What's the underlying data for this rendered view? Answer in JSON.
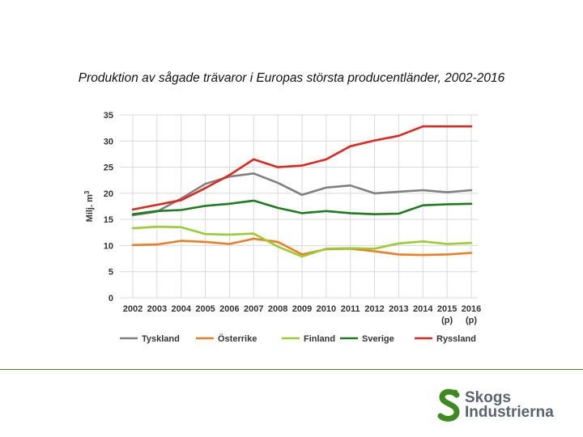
{
  "slide": {
    "title": "Produktion av sågade trävaror i Europas största producentländer, 2002-2016"
  },
  "logo": {
    "line1": "Skogs",
    "line2": "Industrierna",
    "color": "#3d8b1f"
  },
  "chart_data": {
    "type": "line",
    "title": "Produktion av sågade trävaror i Europas största producentländer, 2002-2016",
    "ylabel": "Milj. m",
    "ylabel_sup": "3",
    "xlabel": "",
    "ylim": [
      0,
      35
    ],
    "yticks": [
      0,
      5,
      10,
      15,
      20,
      25,
      30,
      35
    ],
    "grid": true,
    "legend": "bottom",
    "categories": [
      "2002",
      "2003",
      "2004",
      "2005",
      "2006",
      "2007",
      "2008",
      "2009",
      "2010",
      "2011",
      "2012",
      "2013",
      "2014",
      "2015",
      "2016"
    ],
    "category_notes": {
      "2015": "(p)",
      "2016": "(p)"
    },
    "series": [
      {
        "name": "Tyskland",
        "color": "#808080",
        "values": [
          15.8,
          16.5,
          19.0,
          21.8,
          23.2,
          23.8,
          22.0,
          19.7,
          21.1,
          21.5,
          20.0,
          20.3,
          20.6,
          20.2,
          20.6
        ]
      },
      {
        "name": "Österrike",
        "color": "#ee7d22",
        "values": [
          10.1,
          10.2,
          10.9,
          10.7,
          10.3,
          11.3,
          10.7,
          8.3,
          9.3,
          9.4,
          8.9,
          8.3,
          8.2,
          8.3,
          8.6
        ]
      },
      {
        "name": "Finland",
        "color": "#9acd32",
        "values": [
          13.3,
          13.6,
          13.5,
          12.2,
          12.1,
          12.3,
          9.8,
          7.9,
          9.4,
          9.5,
          9.4,
          10.4,
          10.8,
          10.3,
          10.5
        ]
      },
      {
        "name": "Sverige",
        "color": "#1e7b1e",
        "values": [
          16.0,
          16.6,
          16.8,
          17.6,
          18.0,
          18.6,
          17.2,
          16.2,
          16.6,
          16.2,
          16.0,
          16.1,
          17.7,
          17.9,
          18.0
        ]
      },
      {
        "name": "Ryssland",
        "color": "#e0261f",
        "values": [
          16.9,
          17.8,
          18.7,
          21.0,
          23.5,
          26.5,
          25.0,
          25.3,
          26.5,
          29.0,
          30.1,
          31.0,
          32.8,
          32.8,
          32.8
        ]
      }
    ]
  }
}
